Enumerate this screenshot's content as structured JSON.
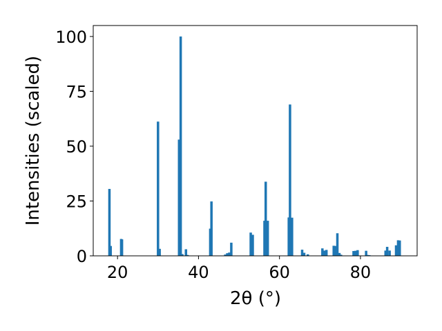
{
  "chart_data": {
    "type": "bar",
    "title": "",
    "xlabel": "2θ (°)",
    "ylabel": "Intensities (scaled)",
    "xlim": [
      14,
      94
    ],
    "ylim": [
      0,
      105
    ],
    "xticks": [
      20,
      40,
      60,
      80
    ],
    "yticks": [
      0,
      25,
      50,
      75,
      100
    ],
    "xtick_labels": [
      "20",
      "40",
      "60",
      "80"
    ],
    "ytick_labels": [
      "0",
      "25",
      "50",
      "75",
      "100"
    ],
    "grid": false,
    "legend": false,
    "bar_color": "#1f77b4",
    "bar_width": 0.6,
    "series": [
      {
        "x": [
          18.0,
          18.3,
          20.9,
          21.1,
          30.0,
          30.4,
          35.2,
          35.6,
          36.0,
          36.9,
          37.3,
          42.9,
          43.2,
          46.6,
          47.1,
          47.6,
          48.1,
          52.9,
          53.4,
          56.3,
          56.6,
          57.1,
          62.3,
          62.6,
          63.1,
          65.6,
          66.1,
          67.0,
          70.6,
          71.1,
          71.6,
          73.4,
          73.9,
          74.3,
          74.8,
          75.2,
          78.3,
          78.8,
          79.3,
          81.4,
          81.8,
          82.2,
          86.2,
          86.6,
          87.2,
          88.8,
          89.3,
          89.7
        ],
        "y": [
          30.5,
          4.5,
          7.7,
          7.5,
          61.2,
          3.2,
          53.0,
          100.0,
          0.8,
          3.0,
          0.4,
          12.4,
          24.8,
          0.6,
          1.2,
          1.5,
          6.0,
          10.6,
          9.6,
          16.0,
          33.8,
          16.0,
          17.5,
          69.0,
          17.4,
          2.8,
          1.4,
          0.7,
          3.4,
          2.4,
          2.7,
          4.6,
          4.5,
          10.3,
          1.3,
          0.5,
          2.2,
          2.3,
          2.6,
          2.3,
          0.4,
          0.3,
          2.4,
          4.1,
          2.4,
          4.8,
          7.1,
          7.0
        ]
      }
    ]
  }
}
